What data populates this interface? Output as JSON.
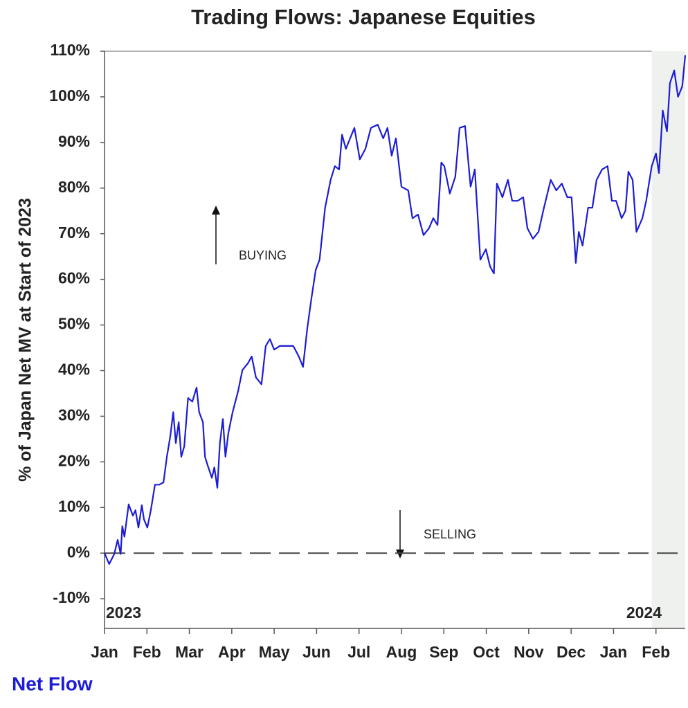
{
  "chart_data": {
    "type": "line",
    "title": "Trading Flows: Japanese Equities",
    "ylabel": "% of Japan Net MV at Start of 2023",
    "annotations": [
      "BUYING",
      "SELLING",
      "2023",
      "2024"
    ],
    "xlim": [
      0,
      13.69
    ],
    "ylim": [
      -16.5,
      110
    ],
    "xticks": [
      {
        "value": 0,
        "label": "Jan"
      },
      {
        "value": 1,
        "label": "Feb"
      },
      {
        "value": 2,
        "label": "Mar"
      },
      {
        "value": 3,
        "label": "Apr"
      },
      {
        "value": 4,
        "label": "May"
      },
      {
        "value": 5,
        "label": "Jun"
      },
      {
        "value": 6,
        "label": "Jul"
      },
      {
        "value": 7,
        "label": "Aug"
      },
      {
        "value": 8,
        "label": "Sep"
      },
      {
        "value": 9,
        "label": "Oct"
      },
      {
        "value": 10,
        "label": "Nov"
      },
      {
        "value": 11,
        "label": "Dec"
      },
      {
        "value": 12,
        "label": "Jan"
      },
      {
        "value": 13,
        "label": "Feb"
      }
    ],
    "yticks": [
      {
        "value": -10,
        "label": "-10%"
      },
      {
        "value": 0,
        "label": "0%"
      },
      {
        "value": 10,
        "label": "10%"
      },
      {
        "value": 20,
        "label": "20%"
      },
      {
        "value": 30,
        "label": "30%"
      },
      {
        "value": 40,
        "label": "40%"
      },
      {
        "value": 50,
        "label": "50%"
      },
      {
        "value": 60,
        "label": "60%"
      },
      {
        "value": 70,
        "label": "70%"
      },
      {
        "value": 80,
        "label": "80%"
      },
      {
        "value": 90,
        "label": "90%"
      },
      {
        "value": 100,
        "label": "100%"
      },
      {
        "value": 110,
        "label": "110%"
      }
    ],
    "reference_line": 0,
    "shaded_xrange": [
      12.9,
      13.69
    ],
    "x": [
      0,
      0.11,
      0.23,
      0.31,
      0.38,
      0.42,
      0.47,
      0.57,
      0.67,
      0.73,
      0.8,
      0.88,
      0.93,
      1.01,
      1.09,
      1.19,
      1.29,
      1.39,
      1.47,
      1.55,
      1.62,
      1.68,
      1.75,
      1.81,
      1.88,
      1.97,
      2.07,
      2.17,
      2.23,
      2.32,
      2.37,
      2.43,
      2.53,
      2.59,
      2.66,
      2.72,
      2.79,
      2.85,
      2.92,
      3.02,
      3.15,
      3.25,
      3.38,
      3.47,
      3.57,
      3.7,
      3.8,
      3.9,
      4.0,
      4.13,
      4.29,
      4.45,
      4.58,
      4.68,
      4.78,
      4.88,
      4.98,
      5.07,
      5.2,
      5.33,
      5.43,
      5.53,
      5.6,
      5.69,
      5.79,
      5.89,
      6.02,
      6.15,
      6.28,
      6.44,
      6.57,
      6.67,
      6.77,
      6.87,
      7.0,
      7.16,
      7.26,
      7.39,
      7.52,
      7.65,
      7.75,
      7.85,
      7.94,
      8.01,
      8.14,
      8.27,
      8.37,
      8.5,
      8.63,
      8.73,
      8.86,
      8.99,
      9.09,
      9.18,
      9.25,
      9.38,
      9.51,
      9.61,
      9.74,
      9.87,
      9.97,
      10.1,
      10.23,
      10.36,
      10.52,
      10.65,
      10.78,
      10.91,
      11.01,
      11.11,
      11.18,
      11.27,
      11.4,
      11.5,
      11.6,
      11.73,
      11.86,
      11.96,
      12.06,
      12.19,
      12.28,
      12.35,
      12.45,
      12.54,
      12.68,
      12.77,
      12.9,
      13.0,
      13.07,
      13.16,
      13.26,
      13.33,
      13.43,
      13.52,
      13.62,
      13.69
    ],
    "series": [
      {
        "name": "Net Flow",
        "color": "#1c1cd6",
        "values": [
          0,
          -2.4,
          -0.2,
          2.9,
          -0.2,
          5.9,
          3.6,
          10.7,
          8.2,
          9.4,
          5.6,
          10.5,
          7.4,
          5.6,
          9.3,
          15.0,
          15.0,
          15.5,
          21.1,
          25.6,
          30.9,
          24.1,
          28.7,
          21.1,
          23.4,
          34.0,
          33.2,
          36.3,
          30.9,
          28.7,
          21.1,
          19.3,
          16.5,
          18.8,
          14.3,
          24.1,
          29.4,
          21.1,
          26.4,
          30.9,
          35.5,
          40.1,
          41.6,
          43.1,
          38.5,
          37.0,
          45.4,
          46.9,
          44.6,
          45.4,
          45.4,
          45.4,
          43.1,
          40.8,
          49.2,
          56.0,
          62.1,
          64.3,
          75.7,
          81.8,
          84.8,
          84.1,
          91.7,
          88.6,
          90.9,
          93.2,
          86.3,
          88.6,
          93.2,
          93.9,
          90.9,
          93.2,
          87.1,
          90.9,
          80.3,
          79.5,
          73.4,
          74.2,
          69.7,
          71.2,
          73.4,
          71.9,
          85.6,
          84.8,
          78.8,
          82.5,
          93.2,
          93.6,
          80.3,
          84.1,
          64.3,
          66.6,
          62.8,
          61.3,
          81.0,
          78.0,
          81.8,
          77.2,
          77.2,
          78.0,
          71.2,
          68.9,
          70.4,
          75.7,
          81.8,
          79.5,
          81.0,
          78.0,
          78.0,
          63.6,
          70.4,
          67.4,
          75.7,
          75.7,
          81.8,
          84.1,
          84.8,
          77.2,
          77.2,
          73.4,
          75.0,
          83.6,
          81.8,
          70.4,
          73.4,
          77.2,
          84.8,
          87.6,
          83.3,
          97.0,
          92.4,
          103.0,
          105.8,
          100.0,
          102.3,
          109.1
        ]
      }
    ]
  }
}
